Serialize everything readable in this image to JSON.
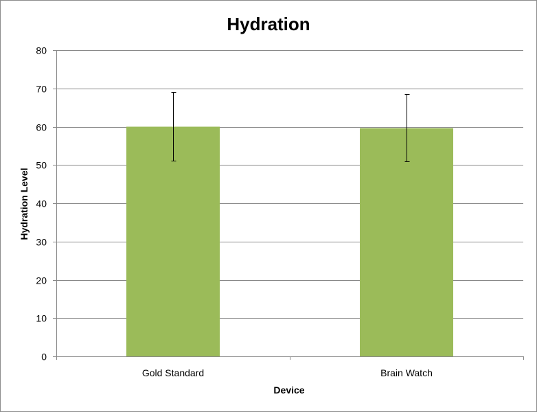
{
  "chart_data": {
    "type": "bar",
    "title": "Hydration",
    "xlabel": "Device",
    "ylabel": "Hydration Level",
    "categories": [
      "Gold Standard",
      "Brain Watch"
    ],
    "values": [
      60.0,
      59.6
    ],
    "error_bars": [
      {
        "low": 51.2,
        "high": 69.0
      },
      {
        "low": 51.0,
        "high": 68.5
      }
    ],
    "ylim": [
      0,
      80
    ],
    "yticks": [
      0,
      10,
      20,
      30,
      40,
      50,
      60,
      70,
      80
    ],
    "grid": true,
    "legend": "none",
    "bar_color": "#9bbb59",
    "grid_color": "#888888"
  }
}
